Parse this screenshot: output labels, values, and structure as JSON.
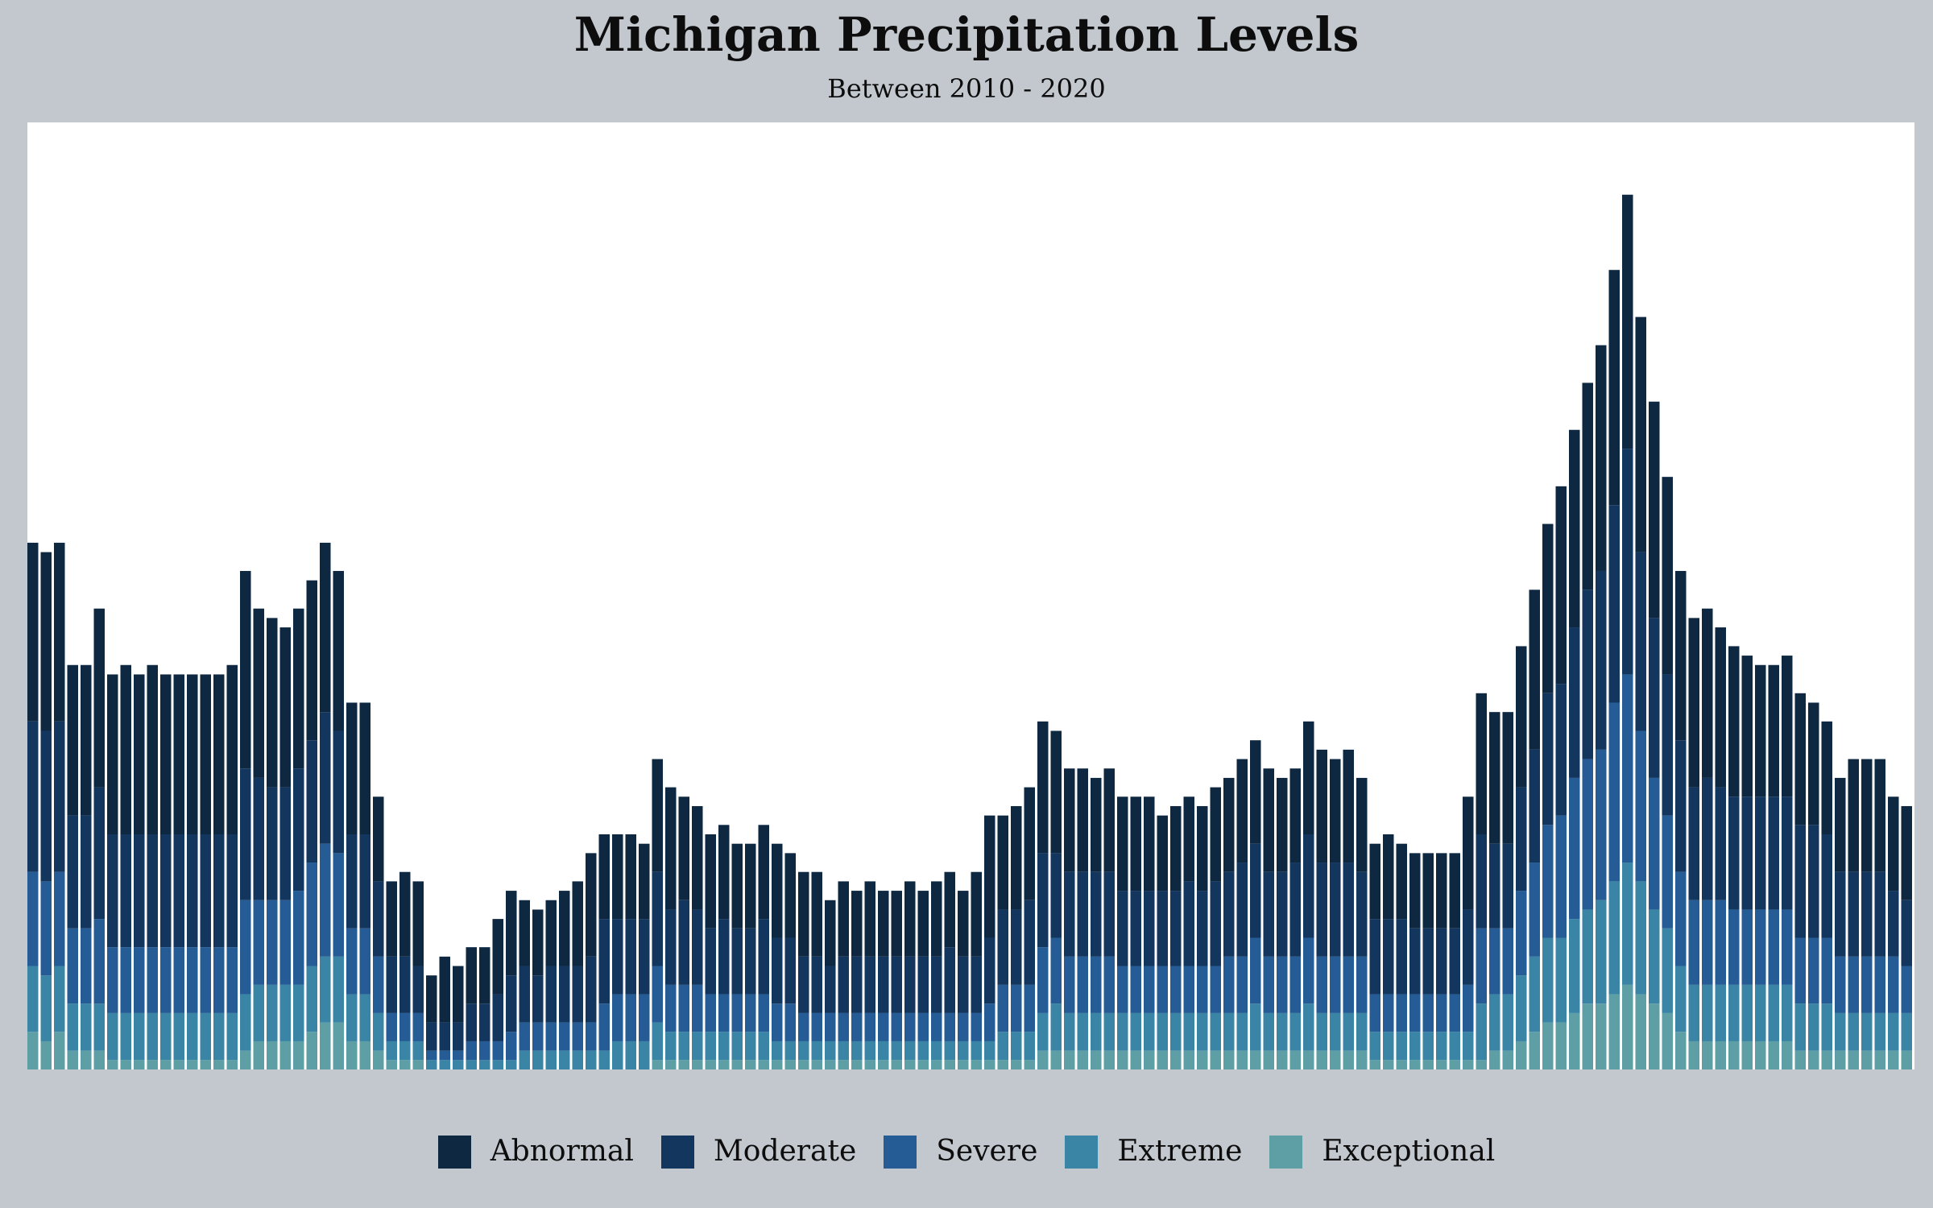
{
  "chart_data": {
    "type": "bar",
    "stacked": true,
    "title": "Michigan Precipitation Levels",
    "subtitle": "Between 2010 - 2020",
    "xlabel": "",
    "ylabel": "",
    "grid": false,
    "legend_position": "bottom-center",
    "ylim": [
      0,
      100
    ],
    "series": [
      {
        "name": "Abnormal",
        "color": "#0e2842",
        "values": [
          19,
          19,
          19,
          16,
          16,
          19,
          17,
          18,
          17,
          18,
          17,
          17,
          17,
          17,
          17,
          18,
          21,
          18,
          18,
          17,
          17,
          17,
          18,
          17,
          14,
          14,
          9,
          8,
          9,
          9,
          5,
          7,
          6,
          6,
          6,
          8,
          9,
          7,
          7,
          7,
          8,
          9,
          11,
          9,
          9,
          9,
          8,
          12,
          13,
          11,
          11,
          10,
          10,
          9,
          9,
          10,
          10,
          9,
          9,
          9,
          7,
          8,
          7,
          8,
          7,
          7,
          8,
          7,
          8,
          8,
          7,
          9,
          13,
          10,
          11,
          12,
          14,
          13,
          11,
          11,
          10,
          11,
          10,
          10,
          10,
          8,
          9,
          9,
          9,
          10,
          10,
          11,
          11,
          11,
          10,
          10,
          12,
          12,
          11,
          12,
          10,
          8,
          9,
          8,
          8,
          8,
          8,
          8,
          12,
          15,
          14,
          14,
          15,
          17,
          18,
          21,
          21,
          22,
          24,
          25,
          27,
          25,
          23,
          21,
          18,
          18,
          18,
          17,
          16,
          15,
          14,
          14,
          15,
          14,
          13,
          12,
          10,
          12,
          12,
          12,
          10,
          10
        ]
      },
      {
        "name": "Moderate",
        "color": "#13365f",
        "values": [
          16,
          16,
          16,
          12,
          12,
          14,
          12,
          12,
          12,
          12,
          12,
          12,
          12,
          12,
          12,
          12,
          14,
          13,
          12,
          12,
          13,
          13,
          14,
          13,
          10,
          10,
          8,
          6,
          6,
          5,
          3,
          3,
          3,
          4,
          4,
          5,
          6,
          6,
          5,
          6,
          6,
          6,
          7,
          9,
          8,
          8,
          8,
          10,
          8,
          9,
          8,
          7,
          8,
          7,
          7,
          8,
          7,
          7,
          6,
          6,
          5,
          6,
          6,
          6,
          6,
          6,
          6,
          6,
          6,
          7,
          6,
          6,
          7,
          8,
          8,
          9,
          10,
          9,
          9,
          9,
          9,
          9,
          8,
          8,
          8,
          8,
          8,
          9,
          8,
          9,
          9,
          10,
          10,
          9,
          9,
          10,
          11,
          10,
          10,
          10,
          9,
          8,
          8,
          8,
          7,
          7,
          7,
          7,
          8,
          10,
          9,
          9,
          11,
          12,
          14,
          14,
          16,
          18,
          19,
          21,
          24,
          19,
          17,
          15,
          14,
          12,
          13,
          12,
          12,
          12,
          12,
          12,
          12,
          12,
          12,
          11,
          9,
          9,
          9,
          9,
          7,
          7
        ]
      },
      {
        "name": "Severe",
        "color": "#255c95",
        "values": [
          10,
          10,
          10,
          8,
          8,
          9,
          7,
          7,
          7,
          7,
          7,
          7,
          7,
          7,
          7,
          7,
          10,
          9,
          9,
          9,
          10,
          11,
          12,
          11,
          7,
          7,
          6,
          3,
          3,
          3,
          1,
          1,
          1,
          2,
          2,
          2,
          3,
          3,
          3,
          3,
          3,
          3,
          3,
          5,
          5,
          5,
          5,
          6,
          5,
          5,
          5,
          4,
          4,
          4,
          4,
          4,
          4,
          4,
          3,
          3,
          3,
          3,
          3,
          3,
          3,
          3,
          3,
          3,
          3,
          3,
          3,
          3,
          4,
          5,
          5,
          5,
          7,
          7,
          6,
          6,
          6,
          6,
          5,
          5,
          5,
          5,
          5,
          5,
          5,
          5,
          6,
          6,
          7,
          6,
          6,
          6,
          7,
          6,
          6,
          6,
          6,
          4,
          4,
          4,
          4,
          4,
          4,
          4,
          5,
          8,
          7,
          7,
          9,
          10,
          12,
          13,
          15,
          16,
          16,
          19,
          20,
          16,
          14,
          12,
          10,
          9,
          9,
          9,
          8,
          8,
          8,
          8,
          8,
          7,
          7,
          7,
          6,
          6,
          6,
          6,
          6,
          5
        ]
      },
      {
        "name": "Extreme",
        "color": "#3a84a5",
        "values": [
          7,
          7,
          7,
          5,
          5,
          5,
          5,
          5,
          5,
          5,
          5,
          5,
          5,
          5,
          5,
          5,
          6,
          6,
          6,
          6,
          6,
          7,
          7,
          7,
          5,
          5,
          4,
          2,
          2,
          2,
          1,
          1,
          1,
          1,
          1,
          1,
          1,
          2,
          2,
          2,
          2,
          2,
          2,
          2,
          3,
          3,
          3,
          4,
          3,
          3,
          3,
          3,
          3,
          3,
          3,
          3,
          2,
          2,
          2,
          2,
          2,
          2,
          2,
          2,
          2,
          2,
          2,
          2,
          2,
          2,
          2,
          2,
          2,
          3,
          3,
          3,
          4,
          5,
          4,
          4,
          4,
          4,
          4,
          4,
          4,
          4,
          4,
          4,
          4,
          4,
          4,
          4,
          5,
          4,
          4,
          4,
          5,
          4,
          4,
          4,
          4,
          3,
          3,
          3,
          3,
          3,
          3,
          3,
          3,
          6,
          6,
          6,
          7,
          8,
          9,
          9,
          10,
          10,
          11,
          12,
          13,
          12,
          10,
          9,
          7,
          6,
          6,
          6,
          6,
          6,
          6,
          6,
          6,
          5,
          5,
          5,
          4,
          4,
          4,
          4,
          4,
          4
        ]
      },
      {
        "name": "Exceptional",
        "color": "#5e9fa5",
        "values": [
          4,
          3,
          4,
          2,
          2,
          2,
          1,
          1,
          1,
          1,
          1,
          1,
          1,
          1,
          1,
          1,
          2,
          3,
          3,
          3,
          3,
          4,
          5,
          5,
          3,
          3,
          2,
          1,
          1,
          1,
          0,
          0,
          0,
          0,
          0,
          0,
          0,
          0,
          0,
          0,
          0,
          0,
          0,
          0,
          0,
          0,
          0,
          1,
          1,
          1,
          1,
          1,
          1,
          1,
          1,
          1,
          1,
          1,
          1,
          1,
          1,
          1,
          1,
          1,
          1,
          1,
          1,
          1,
          1,
          1,
          1,
          1,
          1,
          1,
          1,
          1,
          2,
          2,
          2,
          2,
          2,
          2,
          2,
          2,
          2,
          2,
          2,
          2,
          2,
          2,
          2,
          2,
          2,
          2,
          2,
          2,
          2,
          2,
          2,
          2,
          2,
          1,
          1,
          1,
          1,
          1,
          1,
          1,
          1,
          1,
          2,
          2,
          3,
          4,
          5,
          5,
          6,
          7,
          7,
          8,
          9,
          8,
          7,
          6,
          4,
          3,
          3,
          3,
          3,
          3,
          3,
          3,
          3,
          2,
          2,
          2,
          2,
          2,
          2,
          2,
          2,
          2
        ]
      }
    ]
  }
}
